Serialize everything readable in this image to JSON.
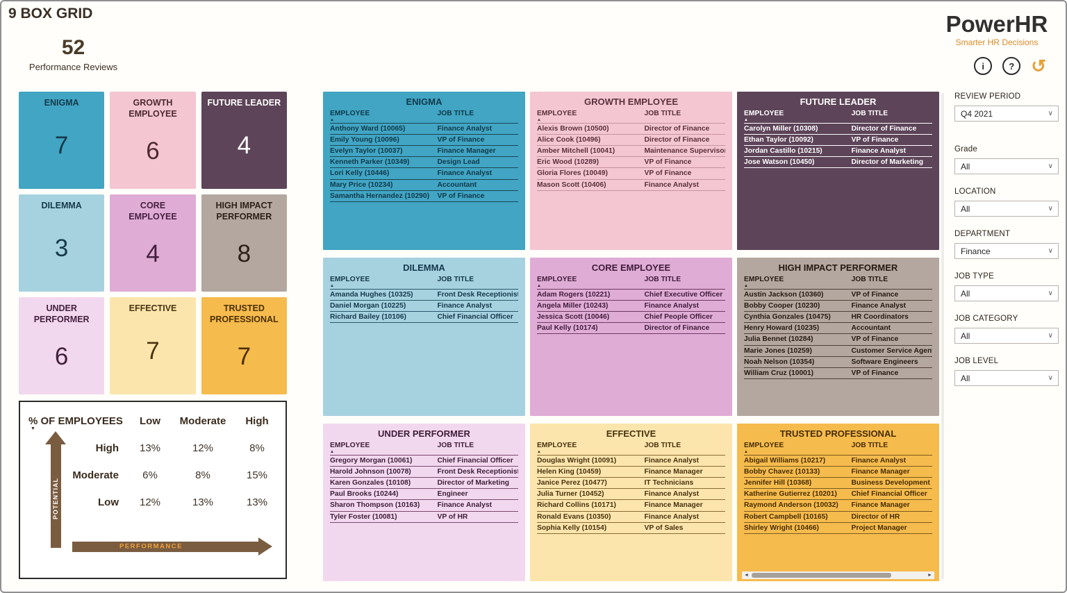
{
  "header": {
    "title": "9 BOX GRID",
    "kpi": {
      "value": "52",
      "label": "Performance Reviews"
    },
    "brand": {
      "name": "PowerHR",
      "tagline": "Smarter HR Decisions"
    }
  },
  "glyphs": {
    "info": "i",
    "help": "?",
    "undo": "↺",
    "sort_asc": "▲",
    "sort_desc": "▼",
    "chevron_down": "∨",
    "scroll_left": "◄",
    "scroll_right": "►"
  },
  "grid_boxes": [
    {
      "label": "ENIGMA",
      "count": "7",
      "bg": "#41A5C3",
      "fg": "#16384A"
    },
    {
      "label": "GROWTH EMPLOYEE",
      "count": "6",
      "bg": "#F3C6D1",
      "fg": "#4D2A33"
    },
    {
      "label": "FUTURE LEADER",
      "count": "4",
      "bg": "#5D4458",
      "fg": "#FFFFFF"
    },
    {
      "label": "DILEMMA",
      "count": "3",
      "bg": "#A6D2E0",
      "fg": "#173A4A"
    },
    {
      "label": "CORE EMPLOYEE",
      "count": "4",
      "bg": "#DFACD6",
      "fg": "#46203F"
    },
    {
      "label": "HIGH IMPACT PERFORMER",
      "count": "8",
      "bg": "#B3A79F",
      "fg": "#2E2018"
    },
    {
      "label": "UNDER PERFORMER",
      "count": "6",
      "bg": "#F2D8EE",
      "fg": "#43203E"
    },
    {
      "label": "EFFECTIVE",
      "count": "7",
      "bg": "#FBE5AC",
      "fg": "#4A3413"
    },
    {
      "label": "TRUSTED PROFESSIONAL",
      "count": "7",
      "bg": "#F6BB4D",
      "fg": "#4A3005"
    }
  ],
  "matrix": {
    "title": "% OF EMPLOYEES",
    "columns": [
      "Low",
      "Moderate",
      "High"
    ],
    "rows": [
      {
        "label": "High",
        "values": [
          "13%",
          "12%",
          "8%"
        ]
      },
      {
        "label": "Moderate",
        "values": [
          "6%",
          "8%",
          "15%"
        ]
      },
      {
        "label": "Low",
        "values": [
          "12%",
          "13%",
          "13%"
        ]
      }
    ],
    "y_axis_label": "POTENTIAL",
    "x_axis_label": "PERFORMANCE"
  },
  "tables": [
    {
      "title": "ENIGMA",
      "col_employee": "EMPLOYEE",
      "col_job": "JOB TITLE",
      "bg": "#41A5C3",
      "fg": "#10384A",
      "sep": "#1C4557",
      "rows": [
        [
          "Anthony Ward (10065)",
          "Finance Analyst"
        ],
        [
          "Emily Young (10096)",
          "VP of Finance"
        ],
        [
          "Evelyn Taylor (10037)",
          "Finance Manager"
        ],
        [
          "Kenneth Parker (10349)",
          "Design Lead"
        ],
        [
          "Lori Kelly (10446)",
          "Finance Analyst"
        ],
        [
          "Mary Price (10234)",
          "Accountant"
        ],
        [
          "Samantha Hernandez (10290)",
          "VP of Finance"
        ]
      ]
    },
    {
      "title": "GROWTH EMPLOYEE",
      "col_employee": "EMPLOYEE",
      "col_job": "JOB TITLE",
      "bg": "#F3C6D1",
      "fg": "#59303C",
      "sep": "#C493A1",
      "rows": [
        [
          "Alexis Brown (10500)",
          "Director of Finance"
        ],
        [
          "Alice Cook (10496)",
          "Director of Finance"
        ],
        [
          "Amber Mitchell (10041)",
          "Maintenance Supervisor"
        ],
        [
          "Eric Wood (10289)",
          "VP of Finance"
        ],
        [
          "Gloria Flores (10049)",
          "VP of Finance"
        ],
        [
          "Mason Scott (10406)",
          "Finance Analyst"
        ]
      ]
    },
    {
      "title": "FUTURE LEADER",
      "col_employee": "EMPLOYEE",
      "col_job": "JOB TITLE",
      "bg": "#5D4458",
      "fg": "#FFFFFF",
      "sep": "#FFFFFF",
      "rows": [
        [
          "Carolyn Miller (10308)",
          "Director of Finance"
        ],
        [
          "Ethan Taylor (10092)",
          "VP of Finance"
        ],
        [
          "Jordan Castillo (10215)",
          "Finance Analyst"
        ],
        [
          "Jose Watson (10450)",
          "Director of Marketing"
        ]
      ]
    },
    {
      "title": "DILEMMA",
      "col_employee": "EMPLOYEE",
      "col_job": "JOB TITLE",
      "bg": "#A6D2E0",
      "fg": "#14384A",
      "sep": "#2A576C",
      "rows": [
        [
          "Amanda Hughes (10325)",
          "Front Desk Receptionists"
        ],
        [
          "Daniel Morgan (10225)",
          "Finance Analyst"
        ],
        [
          "Richard Bailey (10106)",
          "Chief Financial Officer"
        ]
      ]
    },
    {
      "title": "CORE EMPLOYEE",
      "col_employee": "EMPLOYEE",
      "col_job": "JOB TITLE",
      "bg": "#DFACD6",
      "fg": "#3F1C39",
      "sep": "#6E3A64",
      "rows": [
        [
          "Adam Rogers (10221)",
          "Chief Executive Officer"
        ],
        [
          "Angela Miller (10243)",
          "Finance Analyst"
        ],
        [
          "Jessica Scott (10046)",
          "Chief People Officer"
        ],
        [
          "Paul Kelly (10174)",
          "Director of Finance"
        ]
      ]
    },
    {
      "title": "HIGH IMPACT PERFORMER",
      "col_employee": "EMPLOYEE",
      "col_job": "JOB TITLE",
      "bg": "#B3A79F",
      "fg": "#251A12",
      "sep": "#4E4037",
      "rows": [
        [
          "Austin Jackson (10360)",
          "VP of Finance"
        ],
        [
          "Bobby Cooper (10230)",
          "Finance Analyst"
        ],
        [
          "Cynthia Gonzales (10475)",
          "HR Coordinators"
        ],
        [
          "Henry Howard (10235)",
          "Accountant"
        ],
        [
          "Julia Bennet (10284)",
          "VP of Finance"
        ],
        [
          "Marie Jones (10259)",
          "Customer Service Agents"
        ],
        [
          "Noah Nelson (10354)",
          "Software Engineers"
        ],
        [
          "William Cruz (10001)",
          "VP of Finance"
        ]
      ]
    },
    {
      "title": "UNDER PERFORMER",
      "col_employee": "EMPLOYEE",
      "col_job": "JOB TITLE",
      "bg": "#F2D8EE",
      "fg": "#3E1D39",
      "sep": "#7A4870",
      "rows": [
        [
          "Gregory Morgan (10061)",
          "Chief Financial Officer"
        ],
        [
          "Harold Johnson (10078)",
          "Front Desk Receptionists"
        ],
        [
          "Karen Gonzales (10108)",
          "Director of Marketing"
        ],
        [
          "Paul Brooks (10244)",
          "Engineer"
        ],
        [
          "Sharon Thompson (10163)",
          "Finance Analyst"
        ],
        [
          "Tyler Foster (10081)",
          "VP of HR"
        ]
      ]
    },
    {
      "title": "EFFECTIVE",
      "col_employee": "EMPLOYEE",
      "col_job": "JOB TITLE",
      "bg": "#FBE5AC",
      "fg": "#48320F",
      "sep": "#8A6A33",
      "rows": [
        [
          "Douglas Wright (10091)",
          "Finance Analyst"
        ],
        [
          "Helen King (10459)",
          "Finance Manager"
        ],
        [
          "Janice Perez (10477)",
          "IT Technicians"
        ],
        [
          "Julia Turner (10452)",
          "Finance Analyst"
        ],
        [
          "Richard Collins (10171)",
          "Finance Manager"
        ],
        [
          "Ronald Evans (10350)",
          "Finance Analyst"
        ],
        [
          "Sophia Kelly (10154)",
          "VP of Sales"
        ]
      ]
    },
    {
      "title": "TRUSTED PROFESSIONAL",
      "col_employee": "EMPLOYEE",
      "col_job": "JOB TITLE",
      "bg": "#F6BB4D",
      "fg": "#452C04",
      "sep": "#7A5A1E",
      "has_scrollbar": true,
      "rows": [
        [
          "Abigail Williams (10217)",
          "Finance Analyst"
        ],
        [
          "Bobby Chavez (10133)",
          "Finance Manager"
        ],
        [
          "Jennifer Hill (10368)",
          "Business Development Sup"
        ],
        [
          "Katherine Gutierrez (10201)",
          "Chief Financial Officer"
        ],
        [
          "Raymond Anderson (10032)",
          "Finance Manager"
        ],
        [
          "Robert Campbell (10165)",
          "Director of HR"
        ],
        [
          "Shirley Wright (10466)",
          "Project Manager"
        ]
      ]
    }
  ],
  "filters": [
    {
      "label": "REVIEW PERIOD",
      "value": "Q4 2021"
    },
    {
      "label": "Grade",
      "value": "All"
    },
    {
      "label": "LOCATION",
      "value": "All"
    },
    {
      "label": "DEPARTMENT",
      "value": "Finance"
    },
    {
      "label": "JOB TYPE",
      "value": "All"
    },
    {
      "label": "JOB CATEGORY",
      "value": "All"
    },
    {
      "label": "JOB LEVEL",
      "value": "All"
    }
  ]
}
